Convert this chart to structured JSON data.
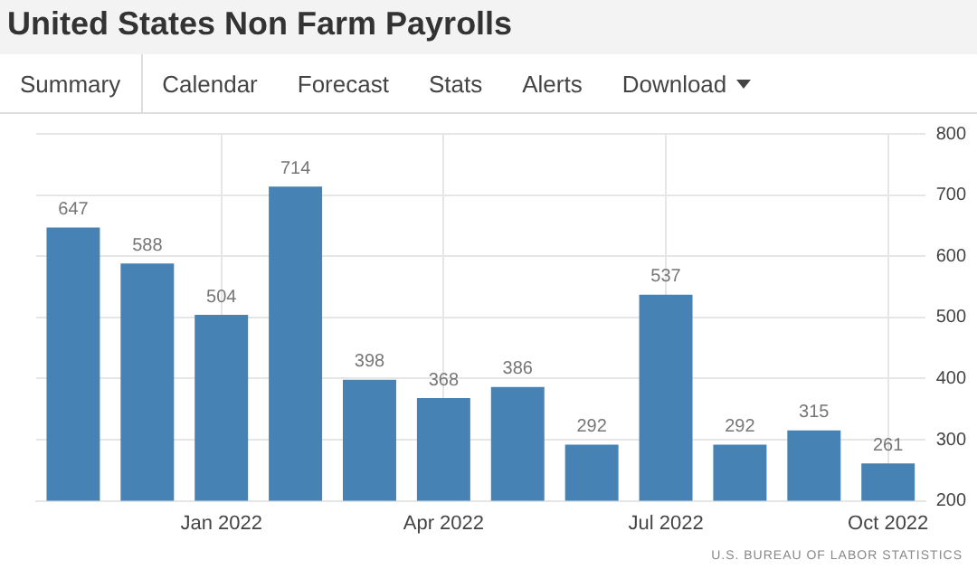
{
  "chart_data": {
    "type": "bar",
    "title": "United States Non Farm Payrolls",
    "categories": [
      null,
      null,
      "Jan 2022",
      null,
      null,
      "Apr 2022",
      null,
      null,
      "Jul 2022",
      null,
      null,
      "Oct 2022"
    ],
    "values": [
      647,
      588,
      504,
      714,
      398,
      368,
      386,
      292,
      537,
      292,
      315,
      261
    ],
    "color": "#4682b4",
    "ylim": [
      200,
      800
    ],
    "yticks": [
      200,
      300,
      400,
      500,
      600,
      700,
      800
    ],
    "grid": true,
    "data_labels": true,
    "legend": false,
    "annotations": [
      "Summary",
      "Calendar",
      "Forecast",
      "Stats",
      "Alerts",
      "Download",
      "U.S. BUREAU OF LABOR STATISTICS"
    ]
  }
}
